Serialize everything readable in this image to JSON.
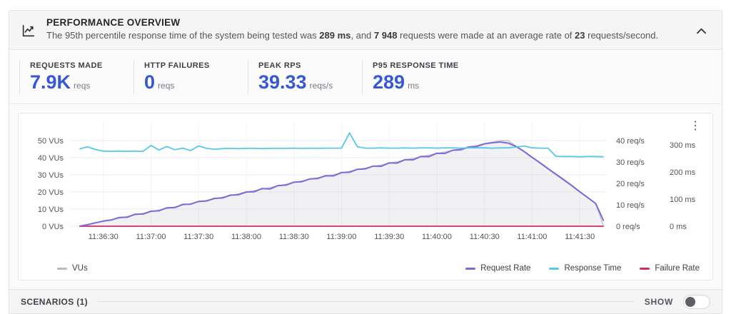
{
  "header": {
    "title": "PERFORMANCE OVERVIEW",
    "description_parts": [
      {
        "text": "The 95th percentile response time of the system being tested was ",
        "bold": false
      },
      {
        "text": "289 ms",
        "bold": true
      },
      {
        "text": ", and ",
        "bold": false
      },
      {
        "text": "7 948",
        "bold": true
      },
      {
        "text": " requests were made at an average rate of ",
        "bold": false
      },
      {
        "text": "23",
        "bold": true
      },
      {
        "text": " requests/second.",
        "bold": false
      }
    ]
  },
  "stats": [
    {
      "label": "REQUESTS MADE",
      "value": "7.9K",
      "unit": "reqs"
    },
    {
      "label": "HTTP FAILURES",
      "value": "0",
      "unit": "reqs"
    },
    {
      "label": "PEAK RPS",
      "value": "39.33",
      "unit": "reqs/s"
    },
    {
      "label": "P95 RESPONSE TIME",
      "value": "289",
      "unit": "ms"
    }
  ],
  "accent_color": "#3659d0",
  "chart_data": {
    "type": "line",
    "title": "",
    "grid": true,
    "t_range": [
      -6,
      332
    ],
    "x_ticks": [
      "11:36:30",
      "11:37:00",
      "11:37:30",
      "11:38:00",
      "11:38:30",
      "11:39:00",
      "11:39:30",
      "11:40:00",
      "11:40:30",
      "11:41:00",
      "11:41:30"
    ],
    "x_tick_seconds": [
      15,
      45,
      75,
      105,
      135,
      165,
      195,
      225,
      255,
      285,
      315
    ],
    "axes": {
      "left": {
        "name": "virtual users",
        "suffix": " VUs",
        "ticks": [
          0,
          10,
          20,
          30,
          40,
          50
        ],
        "max": 50
      },
      "rps": {
        "name": "requests per second",
        "suffix": " req/s",
        "ticks": [
          0,
          10,
          20,
          30,
          40
        ],
        "max": 40
      },
      "ms": {
        "name": "response time",
        "suffix": " ms",
        "ticks": [
          0,
          100,
          200,
          300
        ],
        "max": 300
      }
    },
    "sample_seconds": [
      0,
      5,
      10,
      15,
      20,
      25,
      30,
      35,
      40,
      45,
      50,
      55,
      60,
      65,
      70,
      75,
      80,
      85,
      90,
      95,
      100,
      105,
      110,
      115,
      120,
      125,
      130,
      135,
      140,
      145,
      150,
      155,
      160,
      165,
      170,
      175,
      180,
      185,
      190,
      195,
      200,
      205,
      210,
      215,
      220,
      225,
      230,
      235,
      240,
      245,
      250,
      255,
      260,
      265,
      270,
      275,
      280,
      285,
      290,
      295,
      300,
      305,
      310,
      315,
      320,
      325,
      330
    ],
    "series": [
      {
        "id": "vus",
        "name": "VUs",
        "axis": "left",
        "color": "#c3c3ca",
        "fill": "rgba(165,165,180,0.16)",
        "values": [
          0,
          0.9,
          1.9,
          2.8,
          3.8,
          4.7,
          5.7,
          6.6,
          7.5,
          8.5,
          9.4,
          10.4,
          11.3,
          12.3,
          13.2,
          14.2,
          15.1,
          16,
          17,
          17.9,
          18.9,
          19.8,
          20.8,
          21.7,
          22.6,
          23.6,
          24.5,
          25.5,
          26.4,
          27.4,
          28.3,
          29.2,
          30.2,
          31.1,
          32.1,
          33,
          34,
          34.9,
          35.8,
          36.8,
          37.7,
          38.7,
          39.6,
          40.6,
          41.5,
          42.5,
          43.4,
          44.3,
          45.3,
          46.2,
          47.2,
          48.1,
          49.1,
          50,
          50,
          46.7,
          43.3,
          40,
          36.7,
          33.3,
          30,
          26.7,
          23.3,
          20,
          16.7,
          13.3,
          0
        ]
      },
      {
        "id": "request_rate",
        "name": "Request Rate",
        "axis": "rps",
        "color": "#7b6ad8",
        "values": [
          0,
          0.7,
          1.6,
          2.4,
          2.9,
          4.1,
          4.2,
          5.6,
          5.7,
          7.0,
          7.2,
          8.6,
          8.7,
          10.2,
          10.3,
          11.6,
          11.8,
          13.0,
          13.2,
          14.5,
          14.7,
          16.0,
          16.1,
          17.6,
          17.4,
          19.0,
          19.2,
          20.6,
          20.8,
          22.1,
          22.3,
          23.6,
          23.5,
          25.1,
          25.2,
          26.6,
          26.8,
          28.1,
          28.0,
          29.6,
          29.5,
          31.1,
          31.0,
          32.6,
          32.5,
          34.1,
          34.0,
          35.5,
          35.7,
          37.0,
          37.2,
          38.5,
          39.0,
          39.33,
          38.8,
          37.2,
          34.9,
          32.2,
          29.6,
          26.9,
          24.3,
          21.7,
          19.0,
          16.1,
          13.4,
          10.6,
          2.5
        ]
      },
      {
        "id": "response_time",
        "name": "Response Time",
        "axis": "ms",
        "color": "#58c8e8",
        "values": [
          285,
          293,
          283,
          277,
          276,
          277,
          276,
          277,
          276,
          298,
          281,
          294,
          282,
          288,
          279,
          296,
          287,
          284,
          286,
          287,
          286,
          287,
          287,
          286,
          287,
          287,
          287,
          288,
          287,
          288,
          287,
          288,
          288,
          288,
          344,
          293,
          288,
          288,
          289,
          288,
          288,
          289,
          288,
          289,
          289,
          288,
          289,
          289,
          288,
          289,
          289,
          289,
          288,
          289,
          289,
          292,
          296,
          289,
          288,
          288,
          258,
          257,
          257,
          256,
          257,
          257,
          256
        ]
      },
      {
        "id": "failure_rate",
        "name": "Failure Rate",
        "axis": "rps",
        "color": "#cc2e5f",
        "constant_value": 0
      }
    ]
  },
  "legend": {
    "left": [
      {
        "label": "VUs",
        "color": "#b9b9c1"
      }
    ],
    "right": [
      {
        "label": "Request Rate",
        "color": "#7b6ad8"
      },
      {
        "label": "Response Time",
        "color": "#58c8e8"
      },
      {
        "label": "Failure Rate",
        "color": "#cc2e5f"
      }
    ]
  },
  "scenarios": {
    "label": "SCENARIOS (1)",
    "show_label": "SHOW",
    "toggle_state": "off"
  }
}
